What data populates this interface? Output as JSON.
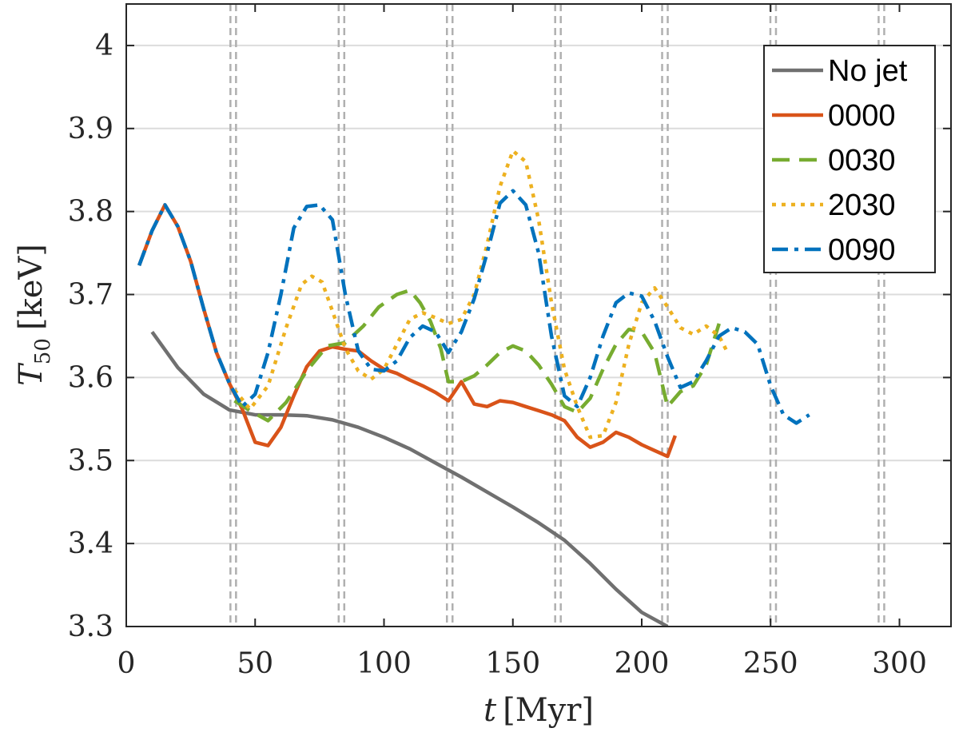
{
  "chart_data": {
    "type": "line",
    "xlabel": "t [Myr]",
    "ylabel": "T50 [keV]",
    "xlim": [
      0,
      320
    ],
    "ylim": [
      3.3,
      4.05
    ],
    "xticks": [
      0,
      50,
      100,
      150,
      200,
      250,
      300
    ],
    "yticks": [
      3.3,
      3.4,
      3.5,
      3.6,
      3.7,
      3.8,
      3.9,
      4.0
    ],
    "xtick_labels": [
      "0",
      "50",
      "100",
      "150",
      "200",
      "250",
      "300"
    ],
    "ytick_labels": [
      "3.3",
      "3.4",
      "3.5",
      "3.6",
      "3.7",
      "3.8",
      "3.9",
      "4"
    ],
    "grid": "horizontal",
    "legend_position": "top-right",
    "vertical_markers": [
      41.5,
      83.5,
      125.5,
      167.5,
      209,
      251,
      293
    ],
    "series": [
      {
        "name": "No jet",
        "color": "#707070",
        "dash": "solid",
        "x": [
          10,
          20,
          30,
          40,
          50,
          60,
          70,
          80,
          90,
          100,
          110,
          120,
          130,
          140,
          150,
          160,
          170,
          180,
          190,
          200,
          210
        ],
        "y": [
          3.655,
          3.612,
          3.58,
          3.561,
          3.555,
          3.555,
          3.554,
          3.549,
          3.54,
          3.528,
          3.514,
          3.497,
          3.48,
          3.462,
          3.444,
          3.425,
          3.404,
          3.376,
          3.345,
          3.317,
          3.3
        ]
      },
      {
        "name": "0000",
        "color": "#D95319",
        "dash": "solid",
        "x": [
          5,
          10,
          15,
          20,
          25,
          30,
          35,
          40,
          45,
          50,
          55,
          60,
          65,
          70,
          75,
          80,
          85,
          90,
          95,
          100,
          105,
          110,
          115,
          120,
          125,
          130,
          135,
          140,
          145,
          150,
          155,
          160,
          165,
          170,
          175,
          180,
          185,
          190,
          195,
          200,
          205,
          210,
          213
        ],
        "y": [
          3.735,
          3.777,
          3.808,
          3.782,
          3.74,
          3.683,
          3.63,
          3.593,
          3.562,
          3.522,
          3.518,
          3.54,
          3.578,
          3.613,
          3.632,
          3.637,
          3.634,
          3.632,
          3.62,
          3.61,
          3.605,
          3.597,
          3.59,
          3.582,
          3.572,
          3.595,
          3.568,
          3.565,
          3.572,
          3.57,
          3.565,
          3.56,
          3.555,
          3.548,
          3.528,
          3.516,
          3.522,
          3.534,
          3.528,
          3.519,
          3.512,
          3.505,
          3.53
        ]
      },
      {
        "name": "0030",
        "color": "#77AC30",
        "dash": "dashed",
        "x": [
          42,
          48,
          55,
          62,
          70,
          78,
          85,
          92,
          98,
          105,
          110,
          114,
          118,
          122,
          125,
          130,
          135,
          140,
          145,
          150,
          155,
          160,
          165,
          170,
          175,
          180,
          185,
          190,
          195,
          200,
          205,
          210,
          215,
          220,
          225,
          230
        ],
        "y": [
          3.572,
          3.56,
          3.548,
          3.57,
          3.608,
          3.638,
          3.642,
          3.662,
          3.685,
          3.7,
          3.705,
          3.69,
          3.668,
          3.635,
          3.595,
          3.595,
          3.602,
          3.615,
          3.63,
          3.638,
          3.632,
          3.615,
          3.592,
          3.565,
          3.558,
          3.575,
          3.61,
          3.64,
          3.658,
          3.655,
          3.63,
          3.565,
          3.583,
          3.59,
          3.615,
          3.665
        ]
      },
      {
        "name": "2030",
        "color": "#EDB120",
        "dash": "dotted",
        "x": [
          42,
          48,
          55,
          62,
          68,
          72,
          76,
          80,
          85,
          90,
          95,
          100,
          105,
          110,
          115,
          120,
          125,
          130,
          135,
          140,
          145,
          150,
          155,
          160,
          165,
          170,
          175,
          180,
          185,
          190,
          195,
          200,
          205,
          210,
          215,
          220,
          225,
          230,
          233
        ],
        "y": [
          3.585,
          3.562,
          3.59,
          3.66,
          3.712,
          3.722,
          3.715,
          3.68,
          3.635,
          3.608,
          3.598,
          3.61,
          3.64,
          3.67,
          3.678,
          3.672,
          3.665,
          3.67,
          3.7,
          3.76,
          3.83,
          3.873,
          3.86,
          3.79,
          3.69,
          3.61,
          3.565,
          3.528,
          3.53,
          3.57,
          3.64,
          3.69,
          3.708,
          3.685,
          3.66,
          3.652,
          3.662,
          3.65,
          3.632
        ]
      },
      {
        "name": "0090",
        "color": "#0072BD",
        "dash": "dashdot",
        "x": [
          5,
          10,
          15,
          20,
          25,
          30,
          35,
          40,
          45,
          50,
          55,
          60,
          65,
          70,
          75,
          80,
          85,
          90,
          95,
          100,
          105,
          110,
          115,
          120,
          125,
          130,
          135,
          140,
          145,
          150,
          155,
          160,
          165,
          170,
          175,
          180,
          185,
          190,
          195,
          200,
          205,
          210,
          215,
          220,
          225,
          230,
          235,
          240,
          245,
          250,
          255,
          260,
          265
        ],
        "y": [
          3.735,
          3.777,
          3.808,
          3.782,
          3.74,
          3.683,
          3.63,
          3.593,
          3.565,
          3.58,
          3.63,
          3.7,
          3.78,
          3.806,
          3.808,
          3.79,
          3.7,
          3.632,
          3.61,
          3.608,
          3.62,
          3.648,
          3.662,
          3.655,
          3.63,
          3.655,
          3.695,
          3.75,
          3.81,
          3.825,
          3.808,
          3.75,
          3.65,
          3.578,
          3.565,
          3.6,
          3.65,
          3.69,
          3.702,
          3.698,
          3.668,
          3.625,
          3.588,
          3.595,
          3.62,
          3.65,
          3.66,
          3.655,
          3.64,
          3.59,
          3.555,
          3.545,
          3.555
        ]
      }
    ]
  }
}
